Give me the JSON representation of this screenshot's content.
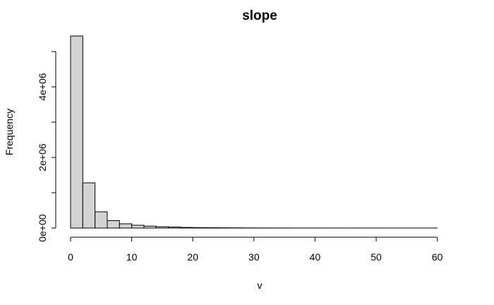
{
  "chart_data": {
    "type": "bar",
    "title": "slope",
    "xlabel": "v",
    "ylabel": "Frequency",
    "xlim": [
      0,
      62
    ],
    "ylim": [
      0,
      5440000
    ],
    "grid": false,
    "bin_width": 2,
    "bins": [
      {
        "start": 0,
        "end": 2,
        "count": 5440000
      },
      {
        "start": 2,
        "end": 4,
        "count": 1280000
      },
      {
        "start": 4,
        "end": 6,
        "count": 460000
      },
      {
        "start": 6,
        "end": 8,
        "count": 210000
      },
      {
        "start": 8,
        "end": 10,
        "count": 120000
      },
      {
        "start": 10,
        "end": 12,
        "count": 80000
      },
      {
        "start": 12,
        "end": 14,
        "count": 55000
      },
      {
        "start": 14,
        "end": 16,
        "count": 38000
      },
      {
        "start": 16,
        "end": 18,
        "count": 28000
      },
      {
        "start": 18,
        "end": 20,
        "count": 18000
      },
      {
        "start": 20,
        "end": 22,
        "count": 13000
      },
      {
        "start": 22,
        "end": 24,
        "count": 10000
      },
      {
        "start": 24,
        "end": 26,
        "count": 8000
      },
      {
        "start": 26,
        "end": 28,
        "count": 6000
      },
      {
        "start": 28,
        "end": 30,
        "count": 4000
      },
      {
        "start": 30,
        "end": 32,
        "count": 3000
      },
      {
        "start": 32,
        "end": 34,
        "count": 2500
      },
      {
        "start": 34,
        "end": 36,
        "count": 2000
      },
      {
        "start": 36,
        "end": 38,
        "count": 1500
      },
      {
        "start": 38,
        "end": 40,
        "count": 1200
      },
      {
        "start": 40,
        "end": 42,
        "count": 1000
      },
      {
        "start": 42,
        "end": 44,
        "count": 800
      },
      {
        "start": 44,
        "end": 46,
        "count": 700
      },
      {
        "start": 46,
        "end": 48,
        "count": 600
      },
      {
        "start": 48,
        "end": 50,
        "count": 500
      },
      {
        "start": 50,
        "end": 52,
        "count": 400
      },
      {
        "start": 52,
        "end": 54,
        "count": 300
      },
      {
        "start": 54,
        "end": 56,
        "count": 250
      },
      {
        "start": 56,
        "end": 58,
        "count": 200
      },
      {
        "start": 58,
        "end": 60,
        "count": 150
      },
      {
        "start": 60,
        "end": 62,
        "count": 100
      }
    ],
    "x_ticks": [
      {
        "value": 0,
        "label": "0"
      },
      {
        "value": 10,
        "label": "10"
      },
      {
        "value": 20,
        "label": "20"
      },
      {
        "value": 30,
        "label": "30"
      },
      {
        "value": 40,
        "label": "40"
      },
      {
        "value": 50,
        "label": "50"
      },
      {
        "value": 60,
        "label": "60"
      }
    ],
    "y_ticks": [
      {
        "value": 0,
        "label": "0e+00"
      },
      {
        "value": 1000000,
        "label": ""
      },
      {
        "value": 2000000,
        "label": "2e+06"
      },
      {
        "value": 3000000,
        "label": ""
      },
      {
        "value": 4000000,
        "label": "4e+06"
      },
      {
        "value": 5000000,
        "label": ""
      }
    ]
  }
}
